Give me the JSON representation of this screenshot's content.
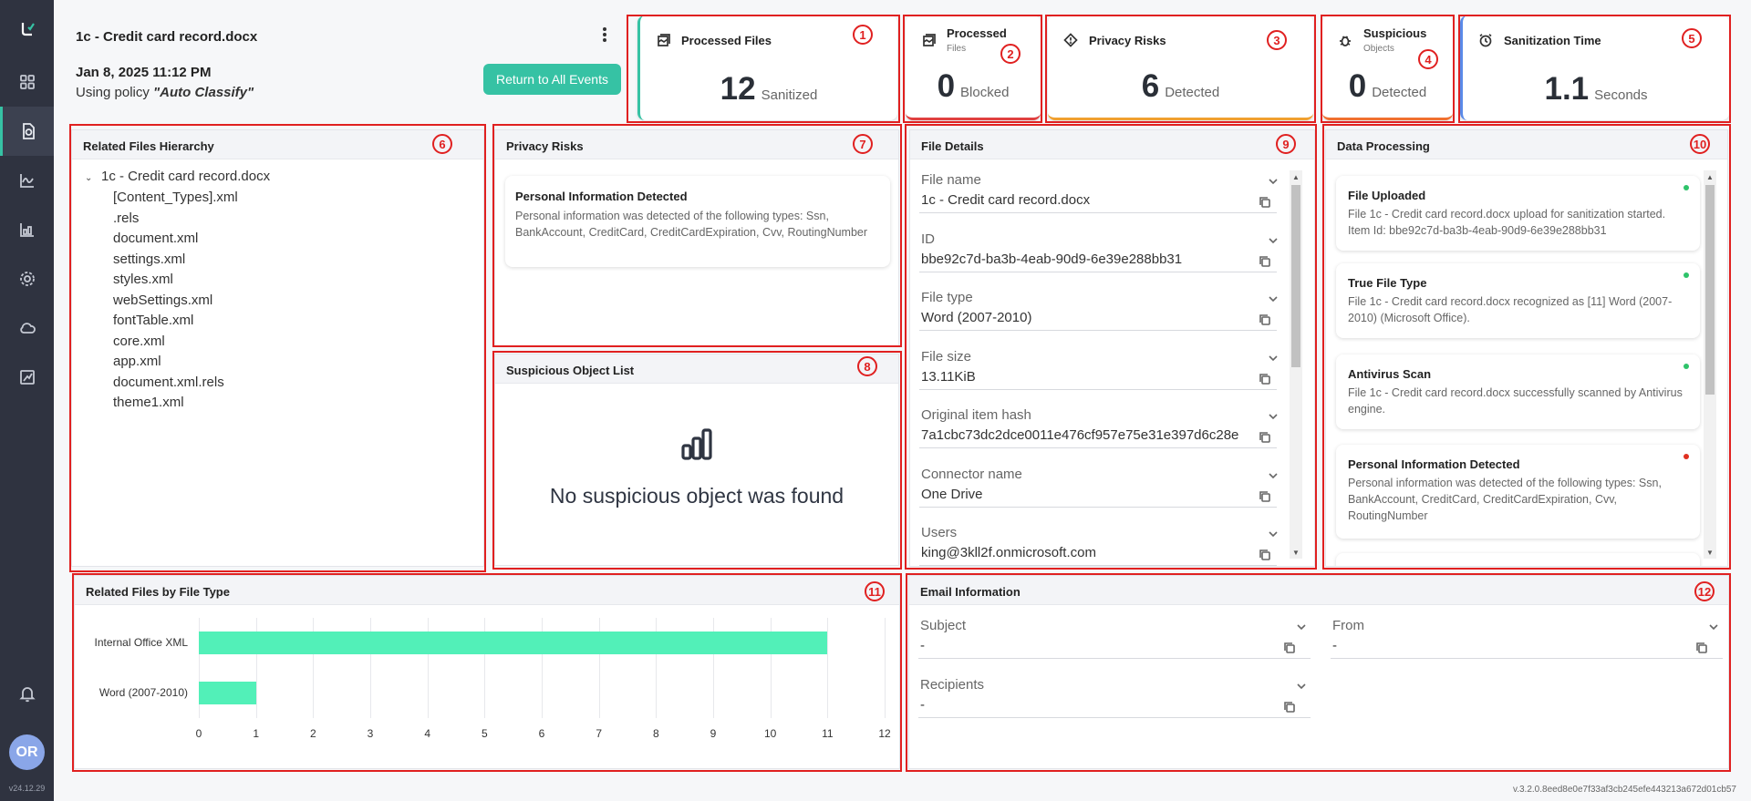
{
  "app": {
    "version_left": "v24.12.29",
    "version_right": "v.3.2.0.8eed8e0e7f33af3cb245efe443213a672d01cb57",
    "avatar": "OR"
  },
  "sidebar": {
    "items": [
      {
        "icon": "logo-icon"
      },
      {
        "icon": "dashboard-grid-icon"
      },
      {
        "icon": "events-icon",
        "active": true
      },
      {
        "icon": "analytics-chart-icon"
      },
      {
        "icon": "reports-icon"
      },
      {
        "icon": "settings-gear-icon"
      },
      {
        "icon": "cloud-icon"
      },
      {
        "icon": "export-report-icon"
      }
    ],
    "bell": "bell-icon"
  },
  "header": {
    "title": "1c - Credit card record.docx",
    "date": "Jan 8, 2025 11:12 PM",
    "policy_prefix": "Using policy ",
    "policy_name": "\"Auto Classify\"",
    "return_button": "Return to All Events"
  },
  "stats": [
    {
      "title": "Processed Files",
      "subtitle": "",
      "value": "12",
      "unit": "Sanitized",
      "accent": "#36c2a4",
      "icon": "file-stack-icon",
      "marker": "1"
    },
    {
      "title": "Processed",
      "subtitle": "Files",
      "value": "0",
      "unit": "Blocked",
      "accent": "#e04040",
      "icon": "file-stack-icon",
      "marker": "2"
    },
    {
      "title": "Privacy Risks",
      "subtitle": "",
      "value": "6",
      "unit": "Detected",
      "accent": "#f0a030",
      "icon": "warning-diamond-icon",
      "marker": "3"
    },
    {
      "title": "Suspicious",
      "subtitle": "Objects",
      "value": "0",
      "unit": "Detected",
      "accent": "#f07030",
      "icon": "bug-icon",
      "marker": "4"
    },
    {
      "title": "Sanitization Time",
      "subtitle": "",
      "value": "1.1",
      "unit": "Seconds",
      "accent": "#5a8ae8",
      "icon": "alarm-clock-icon",
      "marker": "5"
    }
  ],
  "related_files": {
    "title": "Related Files Hierarchy",
    "marker": "6",
    "root": "1c - Credit card record.docx",
    "children": [
      "[Content_Types].xml",
      ".rels",
      "document.xml",
      "settings.xml",
      "styles.xml",
      "webSettings.xml",
      "fontTable.xml",
      "core.xml",
      "app.xml",
      "document.xml.rels",
      "theme1.xml"
    ]
  },
  "privacy_risks": {
    "title": "Privacy Risks",
    "marker": "7",
    "item_title": "Personal Information Detected",
    "item_text": "Personal information was detected of the following types: Ssn, BankAccount, CreditCard, CreditCardExpiration, Cvv, RoutingNumber"
  },
  "suspicious": {
    "title": "Suspicious Object List",
    "marker": "8",
    "empty": "No suspicious object was found"
  },
  "file_details": {
    "title": "File Details",
    "marker": "9",
    "fields": [
      {
        "label": "File name",
        "value": "1c - Credit card record.docx"
      },
      {
        "label": "ID",
        "value": "bbe92c7d-ba3b-4eab-90d9-6e39e288bb31"
      },
      {
        "label": "File type",
        "value": "Word (2007-2010)"
      },
      {
        "label": "File size",
        "value": "13.11KiB"
      },
      {
        "label": "Original item hash",
        "value": "7a1cbc73dc2dce0011e476cf957e75e31e397d6c28e"
      },
      {
        "label": "Connector name",
        "value": "One Drive"
      },
      {
        "label": "Users",
        "value": "king@3kll2f.onmicrosoft.com"
      }
    ]
  },
  "data_processing": {
    "title": "Data Processing",
    "marker": "10",
    "items": [
      {
        "title": "File Uploaded",
        "text": "File 1c - Credit card record.docx upload for sanitization started. Item Id: bbe92c7d-ba3b-4eab-90d9-6e39e288bb31",
        "status_color": "#2ec36a"
      },
      {
        "title": "True File Type",
        "text": "File 1c - Credit card record.docx recognized as [11] Word (2007-2010) (Microsoft Office).",
        "status_color": "#2ec36a"
      },
      {
        "title": "Antivirus Scan",
        "text": "File 1c - Credit card record.docx successfully scanned by Antivirus engine.",
        "status_color": "#2ec36a"
      },
      {
        "title": "Personal Information Detected",
        "text": "Personal information was detected of the following types: Ssn, BankAccount, CreditCard, CreditCardExpiration, Cvv, RoutingNumber",
        "status_color": "#e03020"
      }
    ]
  },
  "related_by_type": {
    "title": "Related Files by File Type",
    "marker": "11"
  },
  "chart_data": {
    "type": "bar",
    "orientation": "horizontal",
    "categories": [
      "Internal Office XML",
      "Word (2007-2010)"
    ],
    "values": [
      11,
      1
    ],
    "xlim": [
      0,
      12
    ],
    "xticks": [
      "0",
      "1",
      "2",
      "3",
      "4",
      "5",
      "6",
      "7",
      "8",
      "9",
      "10",
      "11",
      "12"
    ],
    "bar_color": "#52f0b8",
    "grid": true
  },
  "email": {
    "title": "Email Information",
    "marker": "12",
    "fields": [
      {
        "label": "Subject",
        "value": "-"
      },
      {
        "label": "From",
        "value": "-"
      },
      {
        "label": "Recipients",
        "value": "-"
      }
    ]
  }
}
